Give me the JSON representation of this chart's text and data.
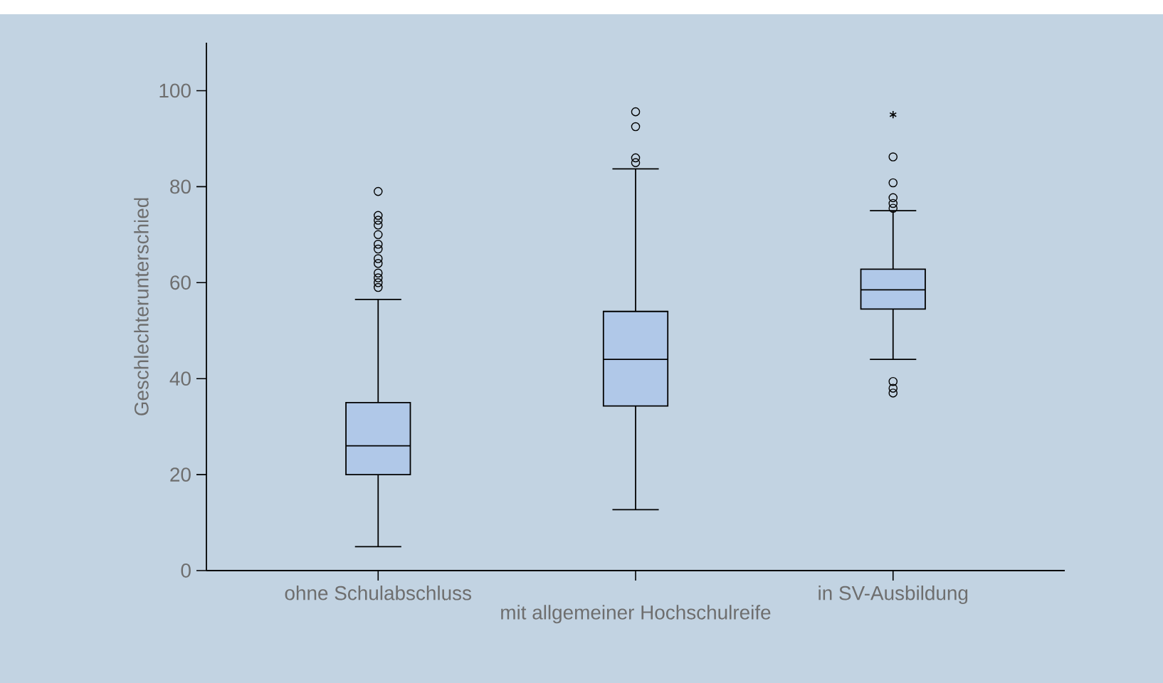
{
  "chart_data": {
    "type": "box",
    "ylabel": "Geschlechterunterschied",
    "categories": [
      "ohne Schulabschluss",
      "mit allgemeiner Hochschulreife",
      "in SV-Ausbildung"
    ],
    "ylim": [
      0,
      110
    ],
    "yticks": [
      0,
      20,
      40,
      60,
      80,
      100
    ],
    "color": "#b0c8e8",
    "marker": "circle",
    "boxes": [
      {
        "low": 5,
        "q1": 20,
        "median": 26,
        "q3": 35,
        "high": 56.5,
        "outliers": [
          59,
          60,
          61,
          62,
          64,
          65,
          67,
          68,
          70,
          72,
          73,
          74,
          79
        ]
      },
      {
        "low": 12.7,
        "q1": 34.3,
        "median": 44,
        "q3": 54,
        "high": 83.7,
        "outliers": [
          85,
          86,
          92.5,
          95.6
        ]
      },
      {
        "low": 44,
        "q1": 54.5,
        "median": 58.5,
        "q3": 62.8,
        "high": 75,
        "outliers": [
          37,
          38,
          39.4,
          75.5,
          76.5,
          77.7,
          80.8,
          86.2
        ]
      }
    ],
    "series": [
      {
        "type": "scatter",
        "x": [
          "in SV-Ausbildung"
        ],
        "values": [
          95
        ],
        "marker": "cross",
        "color": "#000000"
      }
    ]
  }
}
